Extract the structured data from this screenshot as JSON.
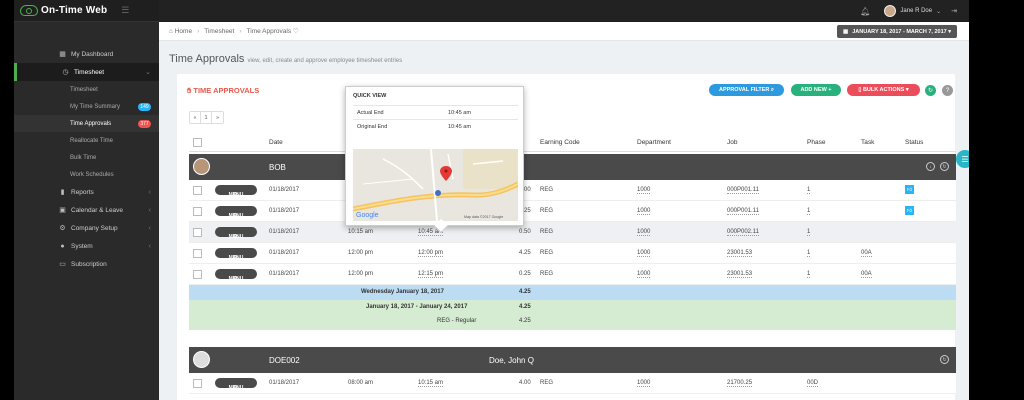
{
  "app": {
    "name": "On-Time Web"
  },
  "sidebar": {
    "items": [
      {
        "label": "My Dashboard",
        "icon": "dashboard-icon"
      },
      {
        "label": "Timesheet",
        "icon": "clock-icon"
      },
      {
        "label": "Timesheet"
      },
      {
        "label": "My Time Summary",
        "badge": "149"
      },
      {
        "label": "Time Approvals",
        "badge": "377"
      },
      {
        "label": "Reallocate Time"
      },
      {
        "label": "Bulk Time"
      },
      {
        "label": "Work Schedules"
      },
      {
        "label": "Reports",
        "icon": "bar-chart-icon"
      },
      {
        "label": "Calendar & Leave",
        "icon": "calendar-icon"
      },
      {
        "label": "Company Setup",
        "icon": "cogs-icon"
      },
      {
        "label": "System",
        "icon": "user-icon"
      },
      {
        "label": "Subscription",
        "icon": "credit-card-icon"
      }
    ]
  },
  "topbar": {
    "user_name": "Jane R Doe"
  },
  "breadcrumb": {
    "home": "Home",
    "section": "Timesheet",
    "page": "Time Approvals"
  },
  "date_range": "JANUARY 18, 2017 - MARCH 7, 2017",
  "page": {
    "title": "Time Approvals",
    "subtitle": "view, edit, create and approve employee timesheet entries"
  },
  "panel": {
    "title": "TIME APPROVALS",
    "approval_filter": "APPROVAL FILTER",
    "add_new": "ADD NEW",
    "bulk_actions": "BULK ACTIONS"
  },
  "pager": {
    "prev": "«",
    "page": "1",
    "next": "»"
  },
  "table": {
    "headers": {
      "date": "Date",
      "earning_code": "Earning Code",
      "department": "Department",
      "job": "Job",
      "phase": "Phase",
      "task": "Task",
      "status": "Status"
    },
    "menu_label": "MENU",
    "groups": [
      {
        "name": "BOB",
        "full": "R"
      },
      {
        "name": "DOE002",
        "full": "Doe, John Q"
      }
    ],
    "rows": [
      {
        "date": "01/18/2017",
        "start": "",
        "end": "",
        "hours": "4.00",
        "code": "REG",
        "dept": "1000",
        "job": "000P001.11",
        "phase": "1",
        "task": ""
      },
      {
        "date": "01/18/2017",
        "start": "",
        "end": "",
        "hours": "0.25",
        "code": "REG",
        "dept": "1000",
        "job": "000P001.11",
        "phase": "1",
        "task": ""
      },
      {
        "date": "01/18/2017",
        "start": "10:15 am",
        "end": "10:45 am",
        "hours": "0.50",
        "code": "REG",
        "dept": "1000",
        "job": "000P002.11",
        "phase": "1",
        "task": ""
      },
      {
        "date": "01/18/2017",
        "start": "12:00 pm",
        "end": "12:00 pm",
        "hours": "4.25",
        "code": "REG",
        "dept": "1000",
        "job": "23001.53",
        "phase": "1",
        "task": "00A"
      },
      {
        "date": "01/18/2017",
        "start": "12:00 pm",
        "end": "12:15 pm",
        "hours": "0.25",
        "code": "REG",
        "dept": "1000",
        "job": "23001.53",
        "phase": "1",
        "task": "00A"
      },
      {
        "date": "01/18/2017",
        "start": "08:00 am",
        "end": "10:15 am",
        "hours": "4.00",
        "code": "REG",
        "dept": "1000",
        "job": "21700.25",
        "phase": "",
        "task": "00D"
      }
    ],
    "day_summary": {
      "label": "Wednesday January 18, 2017",
      "hours": "4.25"
    },
    "week_summary": {
      "label": "January 18, 2017 - January 24, 2017",
      "hours": "4.25",
      "reg_label": "REG - Regular",
      "reg_hours": "4.25"
    }
  },
  "quick_view": {
    "title": "QUICK VIEW",
    "rows": [
      {
        "label": "Actual End",
        "value": "10:45 am"
      },
      {
        "label": "Original End",
        "value": "10:45 am"
      }
    ],
    "map": {
      "attribution": "Map data ©2017 Google",
      "logo": "Google"
    }
  },
  "colors": {
    "accent_green": "#4caf50",
    "approval_blue": "#2d9ae0",
    "add_green": "#28b17c",
    "bulk_red": "#ec4d5a",
    "title_red": "#e85a4f"
  }
}
